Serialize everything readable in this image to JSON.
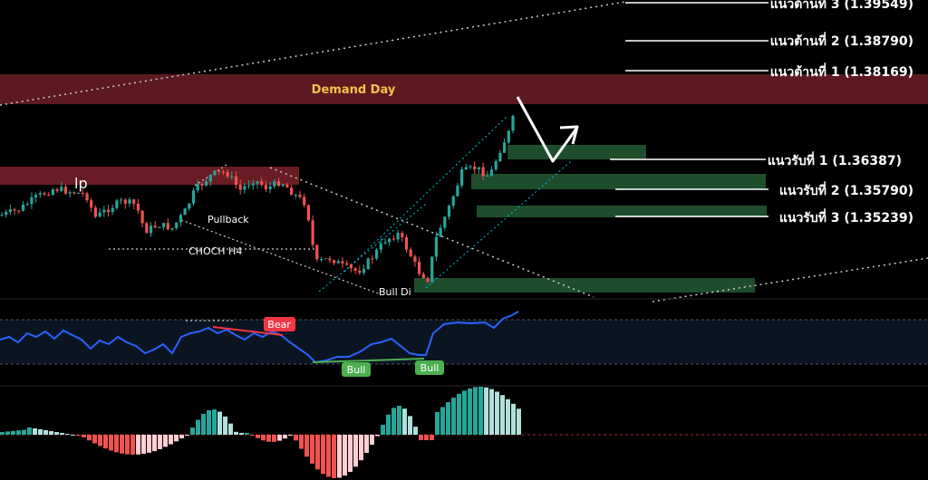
{
  "chart_data": {
    "type": "candlestick",
    "zones": {
      "demand_day": {
        "label": "Demand Day",
        "color": "#5c1a20",
        "label_color": "#f2c14e"
      },
      "supply_left": {
        "color": "#5c1a20"
      }
    },
    "resistance_levels": [
      {
        "label": "แนวต้านที่ 3 (1.39549)",
        "value": 1.39549
      },
      {
        "label": "แนวต้านที่ 2 (1.38790)",
        "value": 1.3879
      },
      {
        "label": "แนวต้านที่ 1 (1.38169)",
        "value": 1.38169
      }
    ],
    "support_levels": [
      {
        "label": "แนวรับที่ 1 (1.36387)",
        "value": 1.36387
      },
      {
        "label": "แนวรับที่ 2 (1.35790)",
        "value": 1.3579
      },
      {
        "label": "แนวรับที่ 3 (1.35239)",
        "value": 1.35239
      }
    ],
    "annotations": {
      "lp": "lp",
      "pullback": "Pullback",
      "choch": "CHOCH H4",
      "bull_di": "Bull Di"
    },
    "rsi_panel": {
      "bear_tag": "Bear",
      "bull_tag_1": "Bull",
      "bull_tag_2": "Bull",
      "line_color": "#2962ff",
      "bear_color": "#f23645",
      "bull_color": "#4caf50"
    },
    "colors": {
      "up": "#26a69a",
      "down": "#ef5350",
      "support_zone": "#1e4d2b",
      "hist_up_strong": "#26a69a",
      "hist_up_weak": "#b2dfdb",
      "hist_down_strong": "#ef5350",
      "hist_down_weak": "#ffcdd2"
    }
  }
}
